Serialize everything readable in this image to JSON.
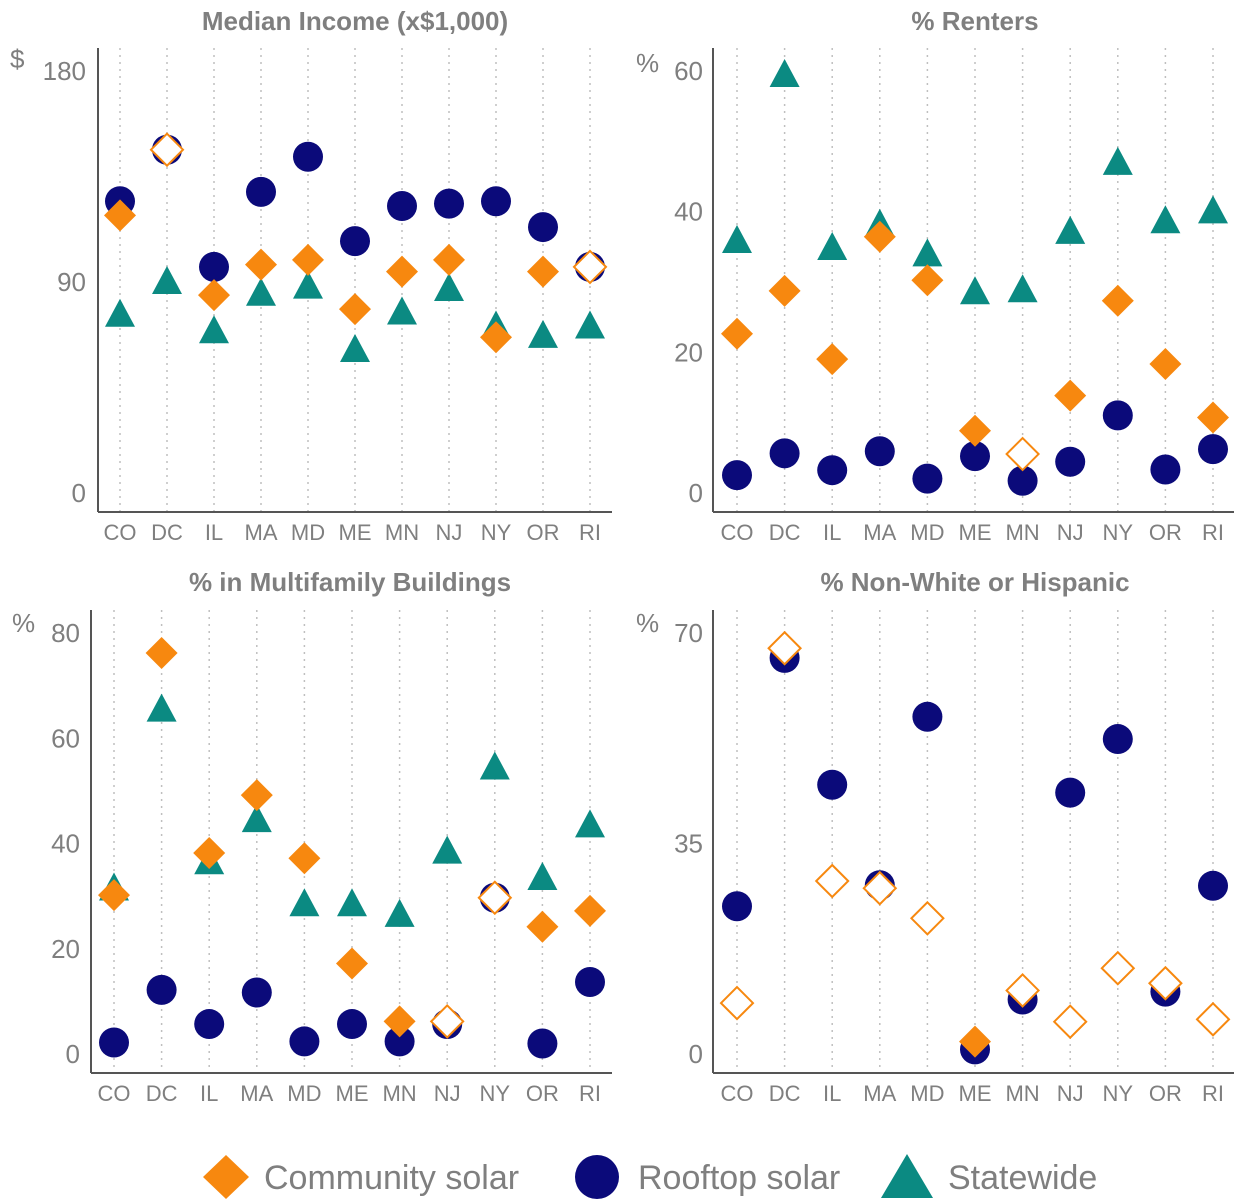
{
  "colors": {
    "community": "#F7880F",
    "rooftop": "#0B0A7A",
    "statewide": "#0B8A82",
    "text": "#7f7f7f",
    "axis": "#555555"
  },
  "legend": {
    "community": "Community solar",
    "rooftop": "Rooftop solar",
    "statewide": "Statewide"
  },
  "icons": {
    "community": "diamond-icon",
    "rooftop": "circle-icon",
    "statewide": "triangle-icon"
  },
  "chart_data": [
    {
      "type": "scatter",
      "title": "Median Income (x$1,000)",
      "unit": "$",
      "categories": [
        "CO",
        "DC",
        "IL",
        "MA",
        "MD",
        "ME",
        "MN",
        "NJ",
        "NY",
        "OR",
        "RI"
      ],
      "ylim": [
        0,
        180
      ],
      "yticks": [
        "0",
        "90",
        "180"
      ],
      "grid": "vertical dotted",
      "series": [
        {
          "name": "Community solar",
          "values": [
            118,
            146,
            84,
            97,
            99,
            78,
            94,
            99,
            66,
            94,
            96
          ],
          "hollow": [
            false,
            true,
            false,
            false,
            false,
            false,
            false,
            false,
            false,
            false,
            true
          ]
        },
        {
          "name": "Rooftop solar",
          "values": [
            124,
            146,
            96,
            128,
            143,
            107,
            122,
            123,
            124,
            113,
            96
          ]
        },
        {
          "name": "Statewide",
          "values": [
            75,
            89,
            68,
            84,
            87,
            60,
            76,
            86,
            70,
            66,
            70
          ]
        }
      ]
    },
    {
      "type": "scatter",
      "title": "% Renters",
      "unit": "%",
      "categories": [
        "CO",
        "DC",
        "IL",
        "MA",
        "MD",
        "ME",
        "MN",
        "NJ",
        "NY",
        "OR",
        "RI"
      ],
      "ylim": [
        0,
        60
      ],
      "yticks": [
        "0",
        "20",
        "40",
        "60"
      ],
      "grid": "vertical dotted",
      "series": [
        {
          "name": "Community solar",
          "values": [
            22.5,
            28.6,
            18.9,
            36.3,
            30.1,
            8.7,
            5.4,
            13.7,
            27.2,
            18.2,
            10.6
          ],
          "hollow": [
            false,
            false,
            false,
            false,
            false,
            false,
            true,
            false,
            false,
            false,
            false
          ]
        },
        {
          "name": "Rooftop solar",
          "values": [
            2.4,
            5.5,
            3.1,
            5.8,
            1.9,
            5.1,
            1.6,
            4.3,
            10.9,
            3.2,
            6.1
          ]
        },
        {
          "name": "Statewide",
          "values": [
            35.5,
            59.1,
            34.5,
            37.8,
            33.6,
            28.2,
            28.5,
            36.8,
            46.6,
            38.3,
            39.7
          ]
        }
      ]
    },
    {
      "type": "scatter",
      "title": "% in Multifamily Buildings",
      "unit": "%",
      "categories": [
        "CO",
        "DC",
        "IL",
        "MA",
        "MD",
        "ME",
        "MN",
        "NJ",
        "NY",
        "OR",
        "RI"
      ],
      "ylim": [
        0,
        80
      ],
      "yticks": [
        "0",
        "20",
        "40",
        "60",
        "80"
      ],
      "grid": "vertical dotted",
      "series": [
        {
          "name": "Community solar",
          "values": [
            30,
            76,
            38,
            49,
            37,
            17,
            6,
            6,
            29.5,
            24,
            27
          ],
          "hollow": [
            false,
            false,
            false,
            false,
            false,
            false,
            false,
            true,
            true,
            false,
            false
          ]
        },
        {
          "name": "Rooftop solar",
          "values": [
            2,
            12,
            5.5,
            11.5,
            2.2,
            5.5,
            2.2,
            5.5,
            29.5,
            1.8,
            13.5
          ]
        },
        {
          "name": "Statewide",
          "values": [
            31,
            65,
            36,
            44,
            28,
            28,
            26,
            38,
            54,
            33,
            43
          ]
        }
      ]
    },
    {
      "type": "scatter",
      "title": "% Non-White or Hispanic",
      "unit": "%",
      "categories": [
        "CO",
        "DC",
        "IL",
        "MA",
        "MD",
        "ME",
        "MN",
        "NJ",
        "NY",
        "OR",
        "RI"
      ],
      "ylim": [
        0,
        70
      ],
      "yticks": [
        "0",
        "35",
        "70"
      ],
      "grid": "vertical dotted",
      "series": [
        {
          "name": "Community solar",
          "values": [
            8.3,
            67.3,
            28.6,
            27.4,
            22.4,
            1.9,
            10.4,
            5.2,
            14.1,
            11.6,
            5.6
          ],
          "hollow": [
            true,
            true,
            true,
            true,
            true,
            false,
            true,
            true,
            true,
            true,
            true
          ]
        },
        {
          "name": "Rooftop solar",
          "values": [
            24.4,
            65.7,
            44.6,
            27.9,
            55.9,
            0.6,
            8.9,
            43.3,
            52.2,
            10.2,
            27.8
          ]
        }
      ]
    }
  ]
}
